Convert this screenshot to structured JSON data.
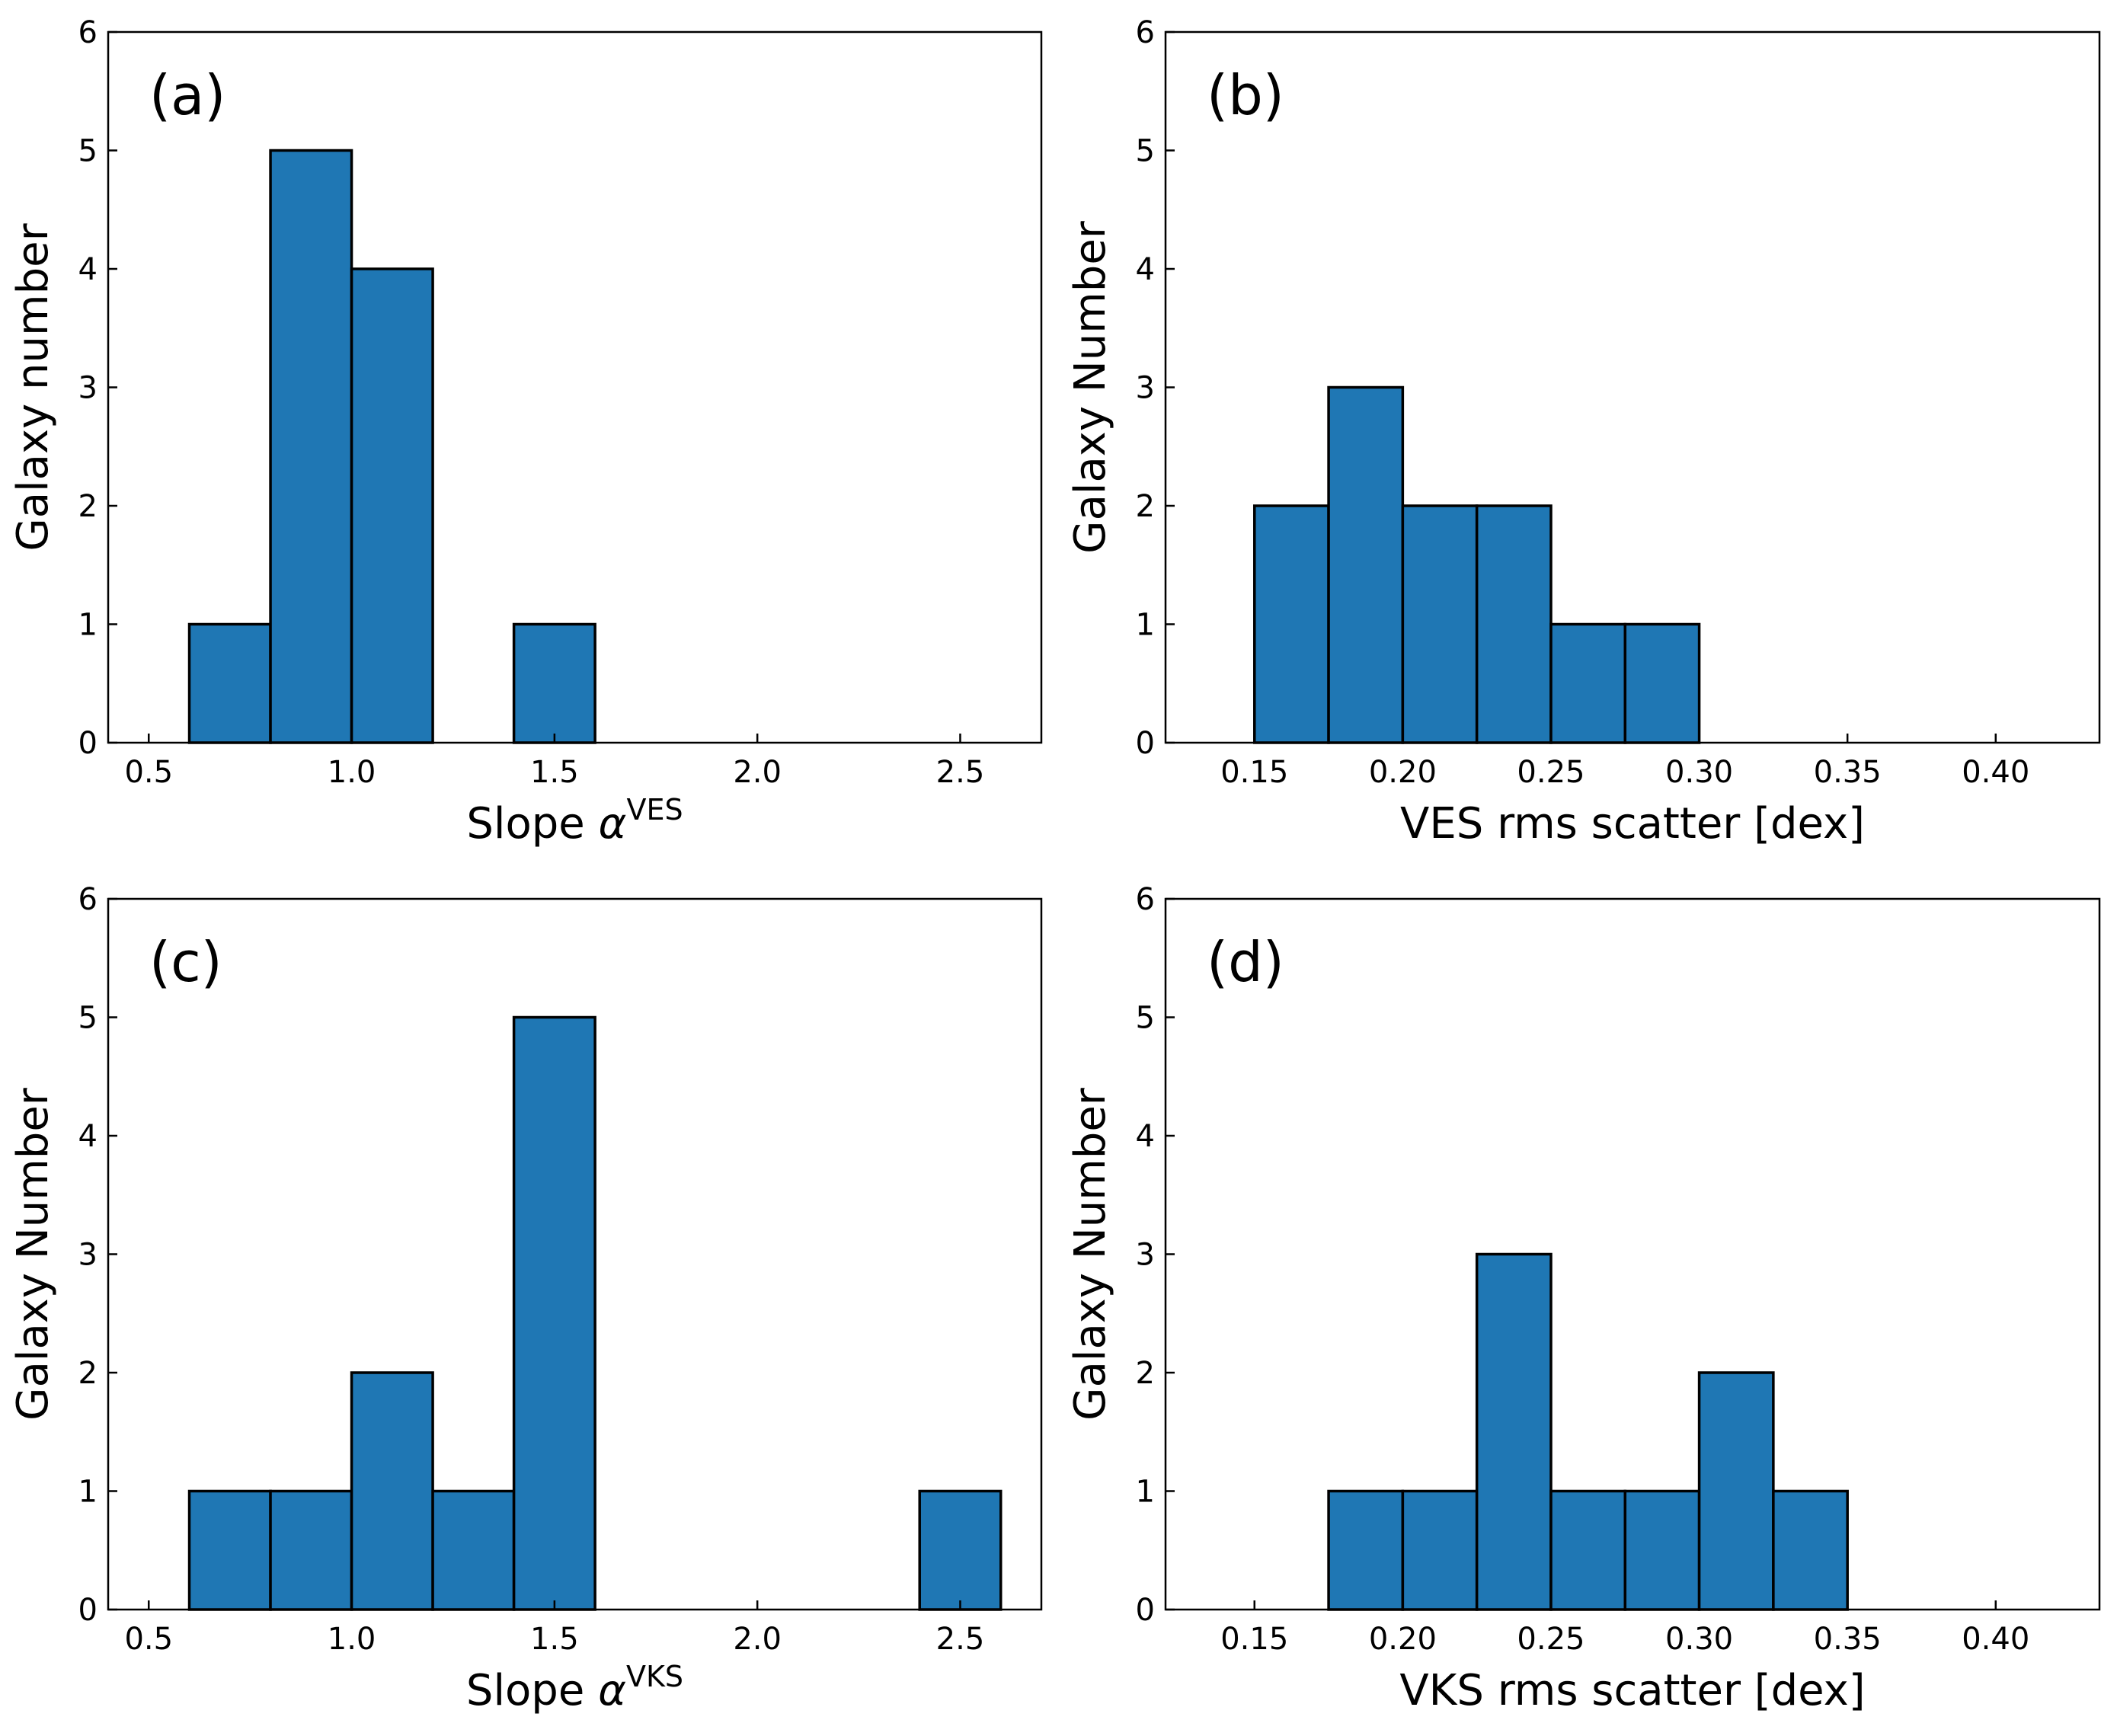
{
  "chart_data": [
    {
      "id": "a",
      "type": "bar",
      "panel_label": "(a)",
      "xlabel": "Slope",
      "xlabel_symbol": "α",
      "xlabel_superscript": "VES",
      "ylabel": "Galaxy number",
      "xlim": [
        0.4,
        2.7
      ],
      "ylim": [
        0,
        6
      ],
      "xticks": [
        0.5,
        1.0,
        1.5,
        2.0,
        2.5
      ],
      "xtick_labels": [
        "0.5",
        "1.0",
        "1.5",
        "2.0",
        "2.5"
      ],
      "yticks": [
        0,
        1,
        2,
        3,
        4,
        5,
        6
      ],
      "ytick_labels": [
        "0",
        "1",
        "2",
        "3",
        "4",
        "5",
        "6"
      ],
      "bin_edges": [
        0.4,
        0.6,
        0.8,
        1.0,
        1.2,
        1.4,
        1.6,
        1.8,
        2.0,
        2.2,
        2.4,
        2.6
      ],
      "values": [
        0,
        1,
        5,
        4,
        0,
        1,
        0,
        0,
        0,
        0,
        0
      ]
    },
    {
      "id": "b",
      "type": "bar",
      "panel_label": "(b)",
      "xlabel": "VES rms scatter [dex]",
      "ylabel": "Galaxy Number",
      "xlim": [
        0.12,
        0.435
      ],
      "ylim": [
        0,
        6
      ],
      "xticks": [
        0.15,
        0.2,
        0.25,
        0.3,
        0.35,
        0.4
      ],
      "xtick_labels": [
        "0.15",
        "0.20",
        "0.25",
        "0.30",
        "0.35",
        "0.40"
      ],
      "yticks": [
        0,
        1,
        2,
        3,
        4,
        5,
        6
      ],
      "ytick_labels": [
        "0",
        "1",
        "2",
        "3",
        "4",
        "5",
        "6"
      ],
      "bin_edges": [
        0.125,
        0.15,
        0.175,
        0.2,
        0.225,
        0.25,
        0.275,
        0.3,
        0.325,
        0.35,
        0.375,
        0.4,
        0.425
      ],
      "values": [
        0,
        2,
        3,
        2,
        2,
        1,
        1,
        0,
        0,
        0,
        0,
        0
      ]
    },
    {
      "id": "c",
      "type": "bar",
      "panel_label": "(c)",
      "xlabel": "Slope",
      "xlabel_symbol": "α",
      "xlabel_superscript": "VKS",
      "ylabel": "Galaxy Number",
      "xlim": [
        0.4,
        2.7
      ],
      "ylim": [
        0,
        6
      ],
      "xticks": [
        0.5,
        1.0,
        1.5,
        2.0,
        2.5
      ],
      "xtick_labels": [
        "0.5",
        "1.0",
        "1.5",
        "2.0",
        "2.5"
      ],
      "yticks": [
        0,
        1,
        2,
        3,
        4,
        5,
        6
      ],
      "ytick_labels": [
        "0",
        "1",
        "2",
        "3",
        "4",
        "5",
        "6"
      ],
      "bin_edges": [
        0.4,
        0.6,
        0.8,
        1.0,
        1.2,
        1.4,
        1.6,
        1.8,
        2.0,
        2.2,
        2.4,
        2.6
      ],
      "values": [
        0,
        1,
        1,
        2,
        1,
        5,
        0,
        0,
        0,
        0,
        1
      ]
    },
    {
      "id": "d",
      "type": "bar",
      "panel_label": "(d)",
      "xlabel": "VKS rms scatter [dex]",
      "ylabel": "Galaxy Number",
      "xlim": [
        0.12,
        0.435
      ],
      "ylim": [
        0,
        6
      ],
      "xticks": [
        0.15,
        0.2,
        0.25,
        0.3,
        0.35,
        0.4
      ],
      "xtick_labels": [
        "0.15",
        "0.20",
        "0.25",
        "0.30",
        "0.35",
        "0.40"
      ],
      "yticks": [
        0,
        1,
        2,
        3,
        4,
        5,
        6
      ],
      "ytick_labels": [
        "0",
        "1",
        "2",
        "3",
        "4",
        "5",
        "6"
      ],
      "bin_edges": [
        0.125,
        0.15,
        0.175,
        0.2,
        0.225,
        0.25,
        0.275,
        0.3,
        0.325,
        0.35,
        0.375,
        0.4,
        0.425
      ],
      "values": [
        0,
        0,
        1,
        1,
        3,
        1,
        1,
        2,
        1,
        0,
        0,
        0
      ]
    }
  ]
}
